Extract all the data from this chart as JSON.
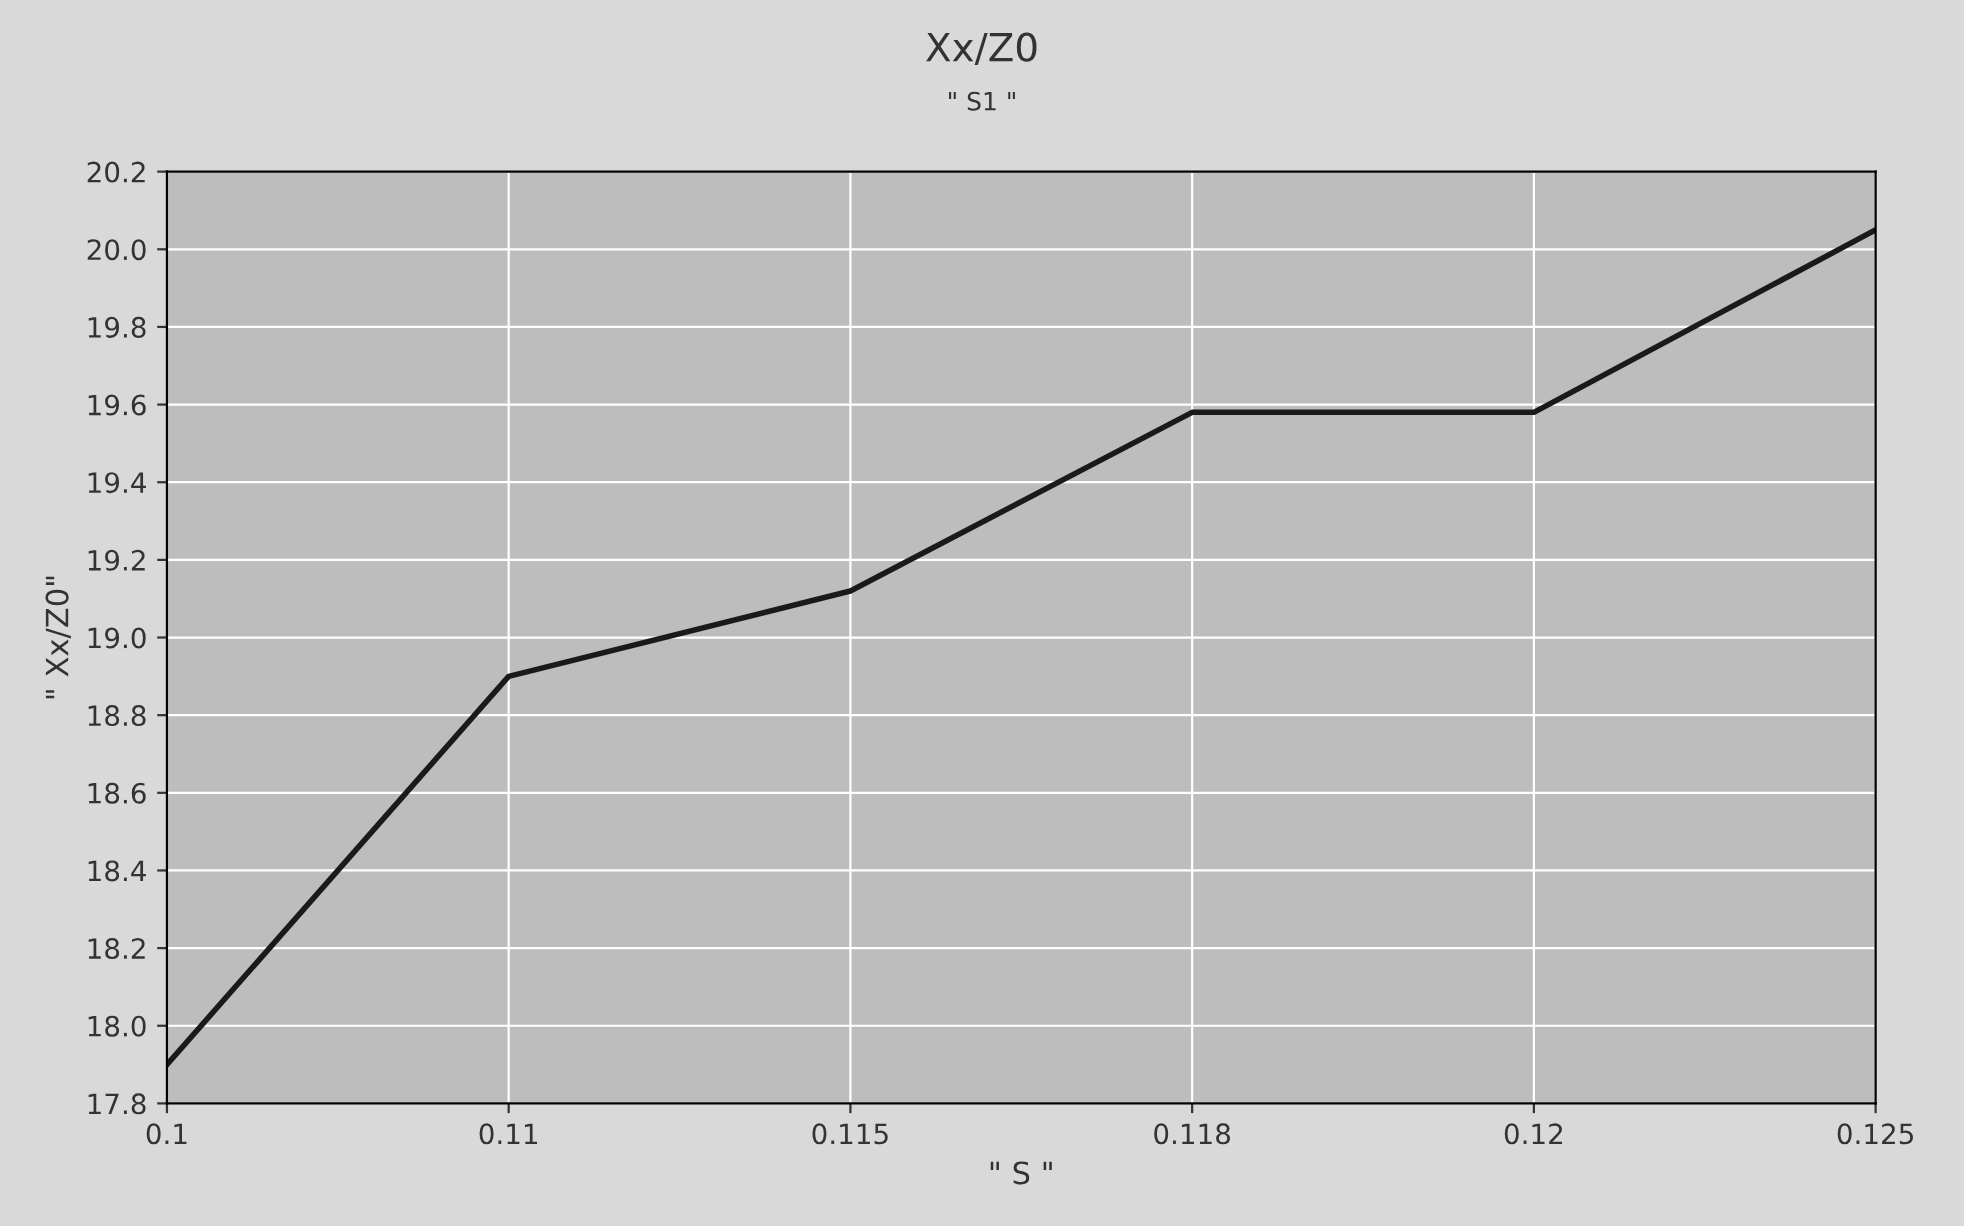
{
  "chart_data": {
    "type": "line",
    "title": "Xx/Z0",
    "subtitle": "\" S1 \"",
    "xlabel": "\" S \"",
    "ylabel": "\" Xx/Z0\"",
    "categories": [
      "0.1",
      "0.11",
      "0.115",
      "0.118",
      "0.12",
      "0.125"
    ],
    "series": [
      {
        "color": "#1a1a1a",
        "values": [
          17.9,
          18.9,
          19.12,
          19.58,
          19.58,
          20.05
        ]
      }
    ],
    "ylim": [
      17.8,
      20.2
    ],
    "yticks": [
      {
        "value": 17.8,
        "label": "17.8"
      },
      {
        "value": 18.0,
        "label": "18.0"
      },
      {
        "value": 18.2,
        "label": "18.2"
      },
      {
        "value": 18.4,
        "label": "18.4"
      },
      {
        "value": 18.6,
        "label": "18.6"
      },
      {
        "value": 18.8,
        "label": "18.8"
      },
      {
        "value": 19.0,
        "label": "19.0"
      },
      {
        "value": 19.2,
        "label": "19.2"
      },
      {
        "value": 19.4,
        "label": "19.4"
      },
      {
        "value": 19.6,
        "label": "19.6"
      },
      {
        "value": 19.8,
        "label": "19.8"
      },
      {
        "value": 20.0,
        "label": "20.0"
      },
      {
        "value": 20.2,
        "label": "20.2"
      }
    ],
    "grid": true,
    "marker": "none",
    "line_style": "solid"
  }
}
